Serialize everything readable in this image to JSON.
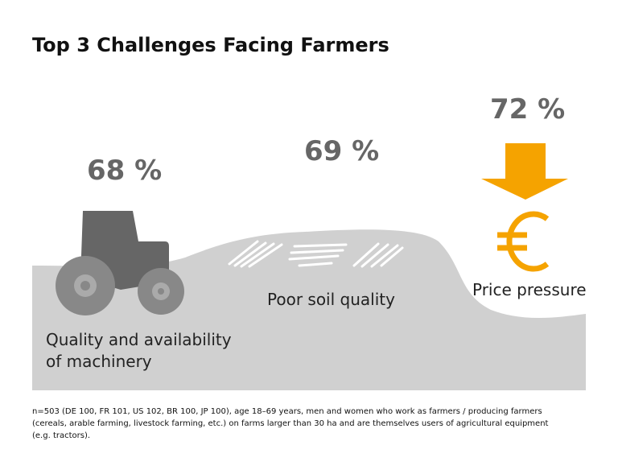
{
  "title": "Top 3 Challenges Facing Farmers",
  "items": [
    {
      "value": "68 %",
      "label": "Quality and availability of machinery"
    },
    {
      "value": "69 %",
      "label": "Poor soil quality"
    },
    {
      "value": "72 %",
      "label": "Price pressure"
    }
  ],
  "footnote": "n=503 (DE 100, FR 101, US 102, BR 100, JP 100), age 18–69 years, men and women who work as farmers / producing farmers (cereals, arable farming, livestock farming, etc.) on farms larger than 30 ha and are themselves users of agricultural equipment (e.g. tractors)."
}
